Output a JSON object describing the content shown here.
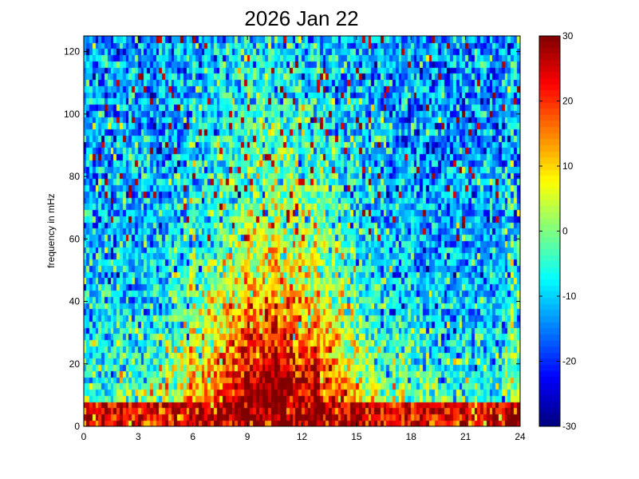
{
  "chart_data": {
    "type": "heatmap",
    "title": "2026 Jan 22",
    "xlabel": "",
    "ylabel": "frequency in mHz",
    "xlim": [
      0,
      24
    ],
    "ylim": [
      0,
      125
    ],
    "x_ticks": [
      "0",
      "3",
      "6",
      "9",
      "12",
      "15",
      "18",
      "21",
      "24"
    ],
    "y_ticks": [
      "0",
      "20",
      "40",
      "60",
      "80",
      "100",
      "120"
    ],
    "colorbar": {
      "range": [
        -30,
        30
      ],
      "ticks": [
        "30",
        "20",
        "10",
        "0",
        "-10",
        "-20",
        "-30"
      ],
      "colormap": "jet"
    },
    "grid": false,
    "grid_shape": {
      "time_bins": 144,
      "freq_bins": 63
    },
    "features": {
      "low_frequency_band_top_mHz": 8,
      "low_frequency_band_level": 26,
      "broad_power_peak_hours": [
        8,
        13
      ],
      "broad_power_peak_freq_mHz": 22,
      "background_level": -20,
      "bright_vertical_streaks_hours": [
        2,
        6,
        9.1,
        10.5,
        12.8,
        23.6
      ]
    }
  }
}
